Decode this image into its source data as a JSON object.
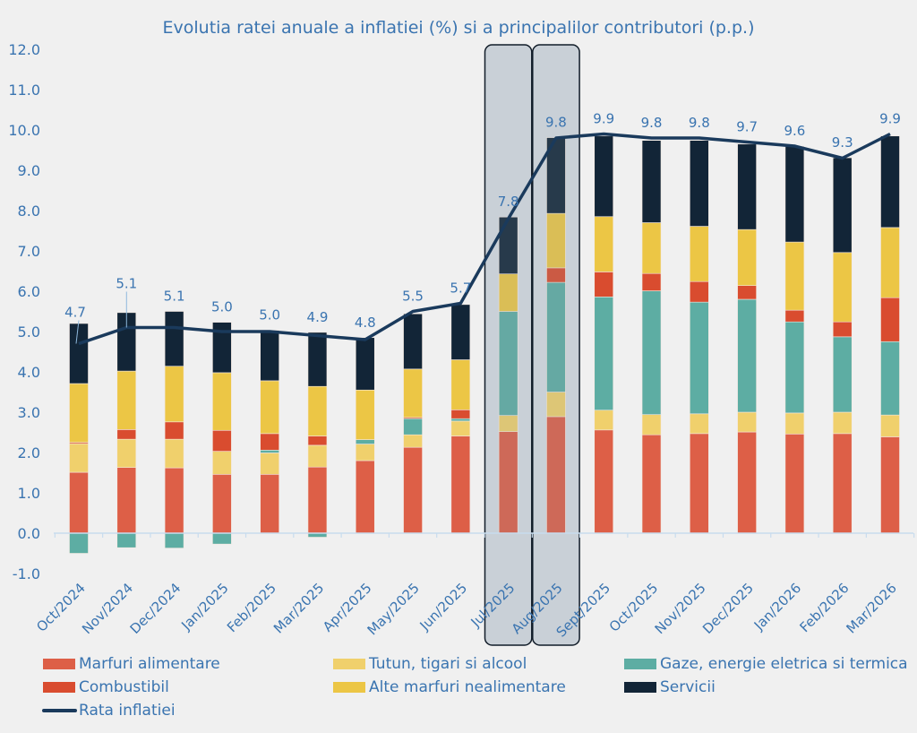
{
  "chart_data": {
    "type": "bar",
    "stacked": true,
    "title": "Evolutia ratei anuale a inflatiei (%) si a principalilor contributori (p.p.)",
    "ylim": [
      -1,
      12
    ],
    "yticks": [
      "-1.0",
      "0.0",
      "1.0",
      "2.0",
      "3.0",
      "4.0",
      "5.0",
      "6.0",
      "7.0",
      "8.0",
      "9.0",
      "10.0",
      "11.0",
      "12.0"
    ],
    "grid": false,
    "legend_placement": "bottom",
    "categories": [
      "Oct/2024",
      "Nov/2024",
      "Dec/2024",
      "Jan/2025",
      "Feb/2025",
      "Mar/2025",
      "Apr/2025",
      "May/2025",
      "Jun/2025",
      "Jul/2025",
      "Aug/2025",
      "Sept/2025",
      "Oct/2025",
      "Nov/2025",
      "Dec/2025",
      "Jan/2026",
      "Feb/2026",
      "Mar/2026"
    ],
    "highlighted_categories": [
      "Jul/2025",
      "Aug/2025"
    ],
    "series": [
      {
        "name": "Marfuri alimentare",
        "color": "#dd5f47",
        "values": [
          1.51,
          1.63,
          1.62,
          1.46,
          1.46,
          1.64,
          1.8,
          2.13,
          2.41,
          2.52,
          2.89,
          2.56,
          2.44,
          2.47,
          2.51,
          2.46,
          2.47,
          2.39
        ]
      },
      {
        "name": "Tutun, tigari si alcool",
        "color": "#f0d06c",
        "values": [
          0.71,
          0.7,
          0.71,
          0.57,
          0.53,
          0.54,
          0.41,
          0.31,
          0.37,
          0.4,
          0.61,
          0.49,
          0.5,
          0.49,
          0.49,
          0.52,
          0.53,
          0.54
        ]
      },
      {
        "name": "Gaze, energie eletrica si termica",
        "color": "#5dada3",
        "values": [
          -0.5,
          -0.36,
          -0.37,
          -0.27,
          0.07,
          -0.1,
          0.11,
          0.4,
          0.06,
          2.58,
          2.72,
          2.81,
          3.07,
          2.77,
          2.8,
          2.26,
          1.87,
          1.82
        ]
      },
      {
        "name": "Combustibil",
        "color": "#d94c2f",
        "values": [
          0.03,
          0.24,
          0.43,
          0.52,
          0.41,
          0.23,
          0.0,
          0.03,
          0.22,
          0.0,
          0.36,
          0.62,
          0.43,
          0.51,
          0.34,
          0.29,
          0.37,
          1.09
        ]
      },
      {
        "name": "Alte marfuri nealimentare",
        "color": "#ecc645",
        "values": [
          1.46,
          1.45,
          1.38,
          1.43,
          1.31,
          1.23,
          1.23,
          1.2,
          1.24,
          0.93,
          1.35,
          1.37,
          1.26,
          1.37,
          1.39,
          1.69,
          1.72,
          1.74
        ]
      },
      {
        "name": "Servicii",
        "color": "#122537",
        "values": [
          1.49,
          1.45,
          1.36,
          1.25,
          1.25,
          1.34,
          1.3,
          1.37,
          1.37,
          1.41,
          1.88,
          2.0,
          2.04,
          2.13,
          2.12,
          2.37,
          2.35,
          2.27
        ]
      }
    ],
    "line": {
      "name": "Rata inflatiei",
      "color": "#1a3a5c",
      "values": [
        4.7,
        5.1,
        5.1,
        5.0,
        5.0,
        4.9,
        4.8,
        5.5,
        5.7,
        7.8,
        9.8,
        9.9,
        9.8,
        9.8,
        9.7,
        9.6,
        9.3,
        9.9
      ],
      "labels": [
        "4.7",
        "5.1",
        "5.1",
        "5.0",
        "5.0",
        "4.9",
        "4.8",
        "5.5",
        "5.7",
        "7.8",
        "9.8",
        "9.9",
        "9.8",
        "9.8",
        "9.7",
        "9.6",
        "9.3",
        "9.9"
      ]
    }
  }
}
